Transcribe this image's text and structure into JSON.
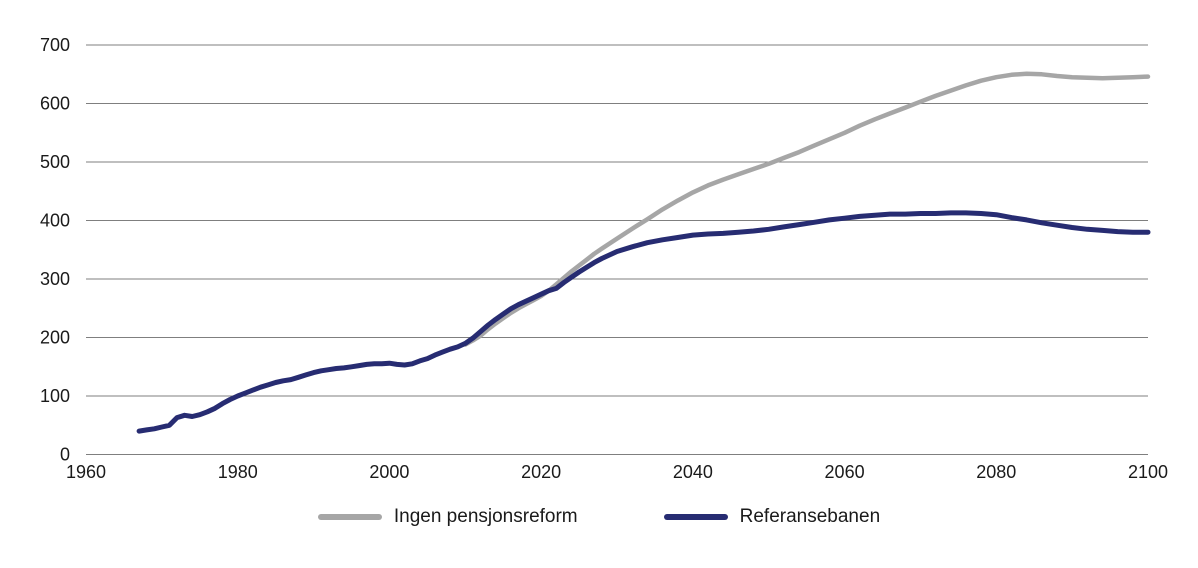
{
  "figure": {
    "background_color": "#ffffff",
    "text_color": "#1a1a1a"
  },
  "legend": {
    "items": [
      {
        "label": "Ingen pensjonsreform",
        "color": "#a6a6a6"
      },
      {
        "label": "Referansebanen",
        "color": "#272c72"
      }
    ]
  },
  "chart_data": {
    "type": "line",
    "title": "",
    "xlabel": "",
    "ylabel": "",
    "xlim": [
      1960,
      2100
    ],
    "ylim": [
      0,
      700
    ],
    "x_ticks": [
      1960,
      1980,
      2000,
      2020,
      2040,
      2060,
      2080,
      2100
    ],
    "y_ticks": [
      0,
      100,
      200,
      300,
      400,
      500,
      600,
      700
    ],
    "grid": "horizontal",
    "gridline_color": "#7f7f7f",
    "legend_position": "bottom-center",
    "series": [
      {
        "name": "Ingen pensjonsreform",
        "color": "#a6a6a6",
        "stroke_width": 4.5,
        "points": [
          [
            2010,
            188
          ],
          [
            2011,
            195
          ],
          [
            2012,
            203
          ],
          [
            2013,
            214
          ],
          [
            2014,
            224
          ],
          [
            2015,
            233
          ],
          [
            2016,
            242
          ],
          [
            2017,
            250
          ],
          [
            2018,
            257
          ],
          [
            2019,
            264
          ],
          [
            2020,
            271
          ],
          [
            2021,
            280
          ],
          [
            2022,
            291
          ],
          [
            2023,
            302
          ],
          [
            2024,
            313
          ],
          [
            2025,
            323
          ],
          [
            2026,
            333
          ],
          [
            2027,
            343
          ],
          [
            2028,
            352
          ],
          [
            2030,
            369
          ],
          [
            2032,
            386
          ],
          [
            2034,
            402
          ],
          [
            2036,
            419
          ],
          [
            2038,
            434
          ],
          [
            2040,
            448
          ],
          [
            2042,
            460
          ],
          [
            2044,
            470
          ],
          [
            2046,
            479
          ],
          [
            2048,
            488
          ],
          [
            2050,
            497
          ],
          [
            2052,
            507
          ],
          [
            2054,
            517
          ],
          [
            2056,
            528
          ],
          [
            2058,
            539
          ],
          [
            2060,
            550
          ],
          [
            2062,
            562
          ],
          [
            2064,
            573
          ],
          [
            2066,
            583
          ],
          [
            2068,
            593
          ],
          [
            2070,
            603
          ],
          [
            2072,
            613
          ],
          [
            2074,
            622
          ],
          [
            2076,
            631
          ],
          [
            2078,
            639
          ],
          [
            2080,
            645
          ],
          [
            2082,
            649
          ],
          [
            2084,
            651
          ],
          [
            2086,
            650
          ],
          [
            2088,
            647
          ],
          [
            2090,
            645
          ],
          [
            2092,
            644
          ],
          [
            2094,
            643
          ],
          [
            2096,
            644
          ],
          [
            2098,
            645
          ],
          [
            2100,
            646
          ]
        ]
      },
      {
        "name": "Referansebanen",
        "color": "#272c72",
        "stroke_width": 5,
        "points": [
          [
            1967,
            40
          ],
          [
            1968,
            42
          ],
          [
            1969,
            44
          ],
          [
            1970,
            47
          ],
          [
            1971,
            50
          ],
          [
            1972,
            63
          ],
          [
            1973,
            67
          ],
          [
            1974,
            65
          ],
          [
            1975,
            68
          ],
          [
            1976,
            73
          ],
          [
            1977,
            79
          ],
          [
            1978,
            87
          ],
          [
            1979,
            94
          ],
          [
            1980,
            100
          ],
          [
            1981,
            105
          ],
          [
            1982,
            110
          ],
          [
            1983,
            115
          ],
          [
            1984,
            119
          ],
          [
            1985,
            123
          ],
          [
            1986,
            126
          ],
          [
            1987,
            128
          ],
          [
            1988,
            132
          ],
          [
            1989,
            136
          ],
          [
            1990,
            140
          ],
          [
            1991,
            143
          ],
          [
            1992,
            145
          ],
          [
            1993,
            147
          ],
          [
            1994,
            148
          ],
          [
            1995,
            150
          ],
          [
            1996,
            152
          ],
          [
            1997,
            154
          ],
          [
            1998,
            155
          ],
          [
            1999,
            155
          ],
          [
            2000,
            156
          ],
          [
            2001,
            154
          ],
          [
            2002,
            153
          ],
          [
            2003,
            155
          ],
          [
            2004,
            160
          ],
          [
            2005,
            164
          ],
          [
            2006,
            170
          ],
          [
            2007,
            175
          ],
          [
            2008,
            180
          ],
          [
            2009,
            184
          ],
          [
            2010,
            190
          ],
          [
            2011,
            199
          ],
          [
            2012,
            210
          ],
          [
            2013,
            221
          ],
          [
            2014,
            231
          ],
          [
            2015,
            240
          ],
          [
            2016,
            249
          ],
          [
            2017,
            256
          ],
          [
            2018,
            262
          ],
          [
            2019,
            268
          ],
          [
            2020,
            274
          ],
          [
            2021,
            280
          ],
          [
            2022,
            284
          ],
          [
            2023,
            294
          ],
          [
            2024,
            303
          ],
          [
            2025,
            312
          ],
          [
            2026,
            320
          ],
          [
            2027,
            328
          ],
          [
            2028,
            335
          ],
          [
            2029,
            341
          ],
          [
            2030,
            347
          ],
          [
            2032,
            355
          ],
          [
            2034,
            362
          ],
          [
            2036,
            367
          ],
          [
            2038,
            371
          ],
          [
            2040,
            375
          ],
          [
            2042,
            377
          ],
          [
            2044,
            378
          ],
          [
            2046,
            380
          ],
          [
            2048,
            382
          ],
          [
            2050,
            385
          ],
          [
            2052,
            389
          ],
          [
            2054,
            393
          ],
          [
            2056,
            397
          ],
          [
            2058,
            401
          ],
          [
            2060,
            404
          ],
          [
            2062,
            407
          ],
          [
            2064,
            409
          ],
          [
            2066,
            411
          ],
          [
            2068,
            411
          ],
          [
            2070,
            412
          ],
          [
            2072,
            412
          ],
          [
            2074,
            413
          ],
          [
            2076,
            413
          ],
          [
            2078,
            412
          ],
          [
            2080,
            410
          ],
          [
            2082,
            405
          ],
          [
            2084,
            401
          ],
          [
            2086,
            396
          ],
          [
            2088,
            392
          ],
          [
            2090,
            388
          ],
          [
            2092,
            385
          ],
          [
            2094,
            383
          ],
          [
            2096,
            381
          ],
          [
            2098,
            380
          ],
          [
            2100,
            380
          ]
        ]
      }
    ]
  }
}
